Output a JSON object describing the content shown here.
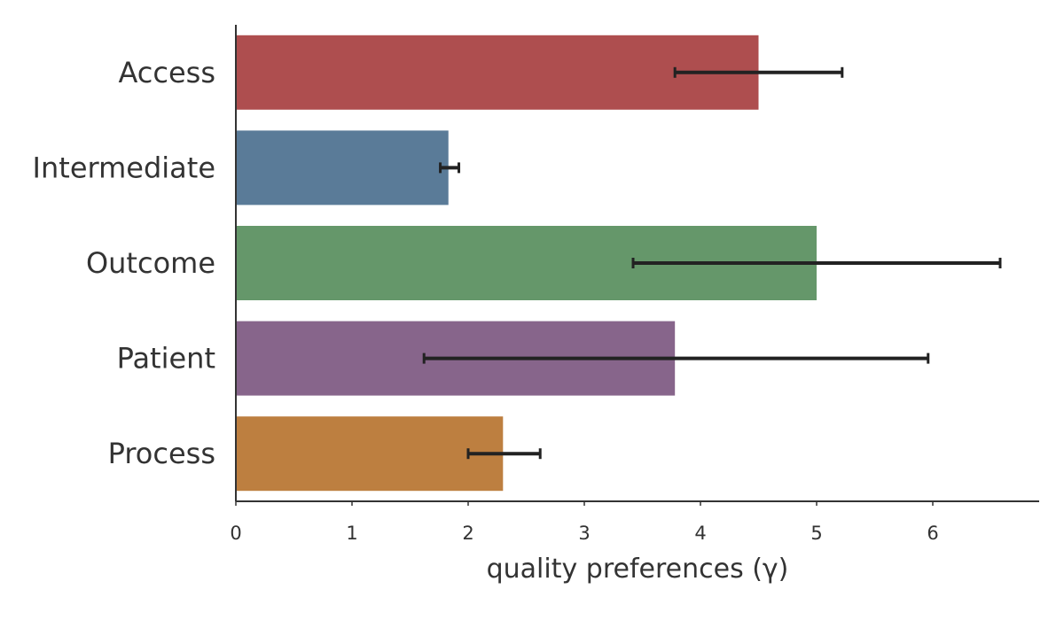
{
  "chart_data": {
    "type": "bar",
    "orientation": "horizontal",
    "categories": [
      "Access",
      "Intermediate",
      "Outcome",
      "Patient",
      "Process"
    ],
    "values": [
      4.5,
      1.83,
      5.0,
      3.78,
      2.3
    ],
    "error_low": [
      3.78,
      1.76,
      3.42,
      1.62,
      2.0
    ],
    "error_high": [
      5.22,
      1.92,
      6.58,
      5.96,
      2.62
    ],
    "colors": [
      "#ae4e4f",
      "#5a7b98",
      "#65976a",
      "#87658b",
      "#bd7f40"
    ],
    "xlabel": "quality preferences (γ)",
    "ylabel": "",
    "title": "",
    "xticks": [
      "0",
      "1",
      "2",
      "3",
      "4",
      "5",
      "6"
    ],
    "xlim": [
      0,
      6.92
    ],
    "grid": false,
    "error_bar_color": "#222222"
  }
}
